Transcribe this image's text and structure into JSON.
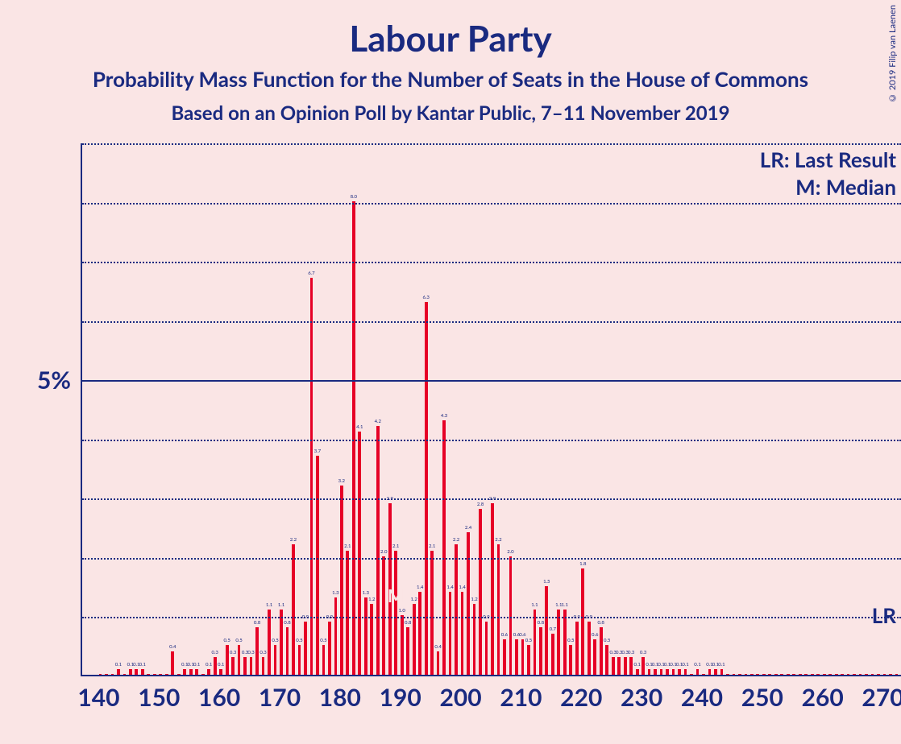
{
  "titles": {
    "main": "Labour Party",
    "sub1": "Probability Mass Function for the Number of Seats in the House of Commons",
    "sub2": "Based on an Opinion Poll by Kantar Public, 7–11 November 2019"
  },
  "copyright": "© 2019 Filip van Laenen",
  "legend": {
    "lr": "LR: Last Result",
    "m": "M: Median",
    "lr_short": "LR"
  },
  "median_marker": "M",
  "chart": {
    "type": "bar",
    "background_color": "#fae5e5",
    "bar_color": "#e60026",
    "axis_color": "#1a2a80",
    "text_color": "#1a2a80",
    "grid_color": "#1a2a80",
    "title_fontsize": 44,
    "subtitle_fontsize": 26,
    "axis_label_fontsize": 30,
    "legend_fontsize": 26,
    "bar_label_fontsize": 6,
    "xlim": [
      137,
      273
    ],
    "ylim": [
      0,
      9.0
    ],
    "ytick_major": 5,
    "ytick_step": 1,
    "xtick_step": 10,
    "xticks": [
      140,
      150,
      160,
      170,
      180,
      190,
      200,
      210,
      220,
      230,
      240,
      250,
      260,
      270
    ],
    "ylabel_at_5": "5%",
    "median_x": 189,
    "lr_short_y": 1.0,
    "bar_width_ratio": 0.5,
    "data": [
      {
        "x": 140,
        "y": 0.02
      },
      {
        "x": 141,
        "y": 0.02
      },
      {
        "x": 142,
        "y": 0.02
      },
      {
        "x": 143,
        "y": 0.1
      },
      {
        "x": 144,
        "y": 0.02
      },
      {
        "x": 145,
        "y": 0.1
      },
      {
        "x": 146,
        "y": 0.1
      },
      {
        "x": 147,
        "y": 0.1
      },
      {
        "x": 148,
        "y": 0.02
      },
      {
        "x": 149,
        "y": 0.02
      },
      {
        "x": 150,
        "y": 0.02
      },
      {
        "x": 151,
        "y": 0.02
      },
      {
        "x": 152,
        "y": 0.4
      },
      {
        "x": 153,
        "y": 0.02
      },
      {
        "x": 154,
        "y": 0.1
      },
      {
        "x": 155,
        "y": 0.1
      },
      {
        "x": 156,
        "y": 0.1
      },
      {
        "x": 157,
        "y": 0.02
      },
      {
        "x": 158,
        "y": 0.1
      },
      {
        "x": 159,
        "y": 0.3
      },
      {
        "x": 160,
        "y": 0.1
      },
      {
        "x": 161,
        "y": 0.5
      },
      {
        "x": 162,
        "y": 0.3
      },
      {
        "x": 163,
        "y": 0.5
      },
      {
        "x": 164,
        "y": 0.3
      },
      {
        "x": 165,
        "y": 0.3
      },
      {
        "x": 166,
        "y": 0.8
      },
      {
        "x": 167,
        "y": 0.3
      },
      {
        "x": 168,
        "y": 1.1
      },
      {
        "x": 169,
        "y": 0.5
      },
      {
        "x": 170,
        "y": 1.1
      },
      {
        "x": 171,
        "y": 0.8
      },
      {
        "x": 172,
        "y": 2.2
      },
      {
        "x": 173,
        "y": 0.5
      },
      {
        "x": 174,
        "y": 0.9
      },
      {
        "x": 175,
        "y": 6.7
      },
      {
        "x": 176,
        "y": 3.7
      },
      {
        "x": 177,
        "y": 0.5
      },
      {
        "x": 178,
        "y": 0.9
      },
      {
        "x": 179,
        "y": 1.3
      },
      {
        "x": 180,
        "y": 3.2
      },
      {
        "x": 181,
        "y": 2.1
      },
      {
        "x": 182,
        "y": 8.0
      },
      {
        "x": 183,
        "y": 4.1
      },
      {
        "x": 184,
        "y": 1.3
      },
      {
        "x": 185,
        "y": 1.2
      },
      {
        "x": 186,
        "y": 4.2
      },
      {
        "x": 187,
        "y": 2.0
      },
      {
        "x": 188,
        "y": 2.9
      },
      {
        "x": 189,
        "y": 2.1
      },
      {
        "x": 190,
        "y": 1.0
      },
      {
        "x": 191,
        "y": 0.8
      },
      {
        "x": 192,
        "y": 1.2
      },
      {
        "x": 193,
        "y": 1.4
      },
      {
        "x": 194,
        "y": 6.3
      },
      {
        "x": 195,
        "y": 2.1
      },
      {
        "x": 196,
        "y": 0.4
      },
      {
        "x": 197,
        "y": 4.3
      },
      {
        "x": 198,
        "y": 1.4
      },
      {
        "x": 199,
        "y": 2.2
      },
      {
        "x": 200,
        "y": 1.4
      },
      {
        "x": 201,
        "y": 2.4
      },
      {
        "x": 202,
        "y": 1.2
      },
      {
        "x": 203,
        "y": 2.8
      },
      {
        "x": 204,
        "y": 0.9
      },
      {
        "x": 205,
        "y": 2.9
      },
      {
        "x": 206,
        "y": 2.2
      },
      {
        "x": 207,
        "y": 0.6
      },
      {
        "x": 208,
        "y": 2.0
      },
      {
        "x": 209,
        "y": 0.6
      },
      {
        "x": 210,
        "y": 0.6
      },
      {
        "x": 211,
        "y": 0.5
      },
      {
        "x": 212,
        "y": 1.1
      },
      {
        "x": 213,
        "y": 0.8
      },
      {
        "x": 214,
        "y": 1.5
      },
      {
        "x": 215,
        "y": 0.7
      },
      {
        "x": 216,
        "y": 1.1
      },
      {
        "x": 217,
        "y": 1.1
      },
      {
        "x": 218,
        "y": 0.5
      },
      {
        "x": 219,
        "y": 0.9
      },
      {
        "x": 220,
        "y": 1.8
      },
      {
        "x": 221,
        "y": 0.9
      },
      {
        "x": 222,
        "y": 0.6
      },
      {
        "x": 223,
        "y": 0.8
      },
      {
        "x": 224,
        "y": 0.5
      },
      {
        "x": 225,
        "y": 0.3
      },
      {
        "x": 226,
        "y": 0.3
      },
      {
        "x": 227,
        "y": 0.3
      },
      {
        "x": 228,
        "y": 0.3
      },
      {
        "x": 229,
        "y": 0.1
      },
      {
        "x": 230,
        "y": 0.3
      },
      {
        "x": 231,
        "y": 0.1
      },
      {
        "x": 232,
        "y": 0.1
      },
      {
        "x": 233,
        "y": 0.1
      },
      {
        "x": 234,
        "y": 0.1
      },
      {
        "x": 235,
        "y": 0.1
      },
      {
        "x": 236,
        "y": 0.1
      },
      {
        "x": 237,
        "y": 0.1
      },
      {
        "x": 238,
        "y": 0.02
      },
      {
        "x": 239,
        "y": 0.1
      },
      {
        "x": 240,
        "y": 0.02
      },
      {
        "x": 241,
        "y": 0.1
      },
      {
        "x": 242,
        "y": 0.1
      },
      {
        "x": 243,
        "y": 0.1
      },
      {
        "x": 244,
        "y": 0.02
      },
      {
        "x": 245,
        "y": 0.02
      },
      {
        "x": 246,
        "y": 0.02
      },
      {
        "x": 247,
        "y": 0.02
      },
      {
        "x": 248,
        "y": 0.02
      },
      {
        "x": 249,
        "y": 0.02
      },
      {
        "x": 250,
        "y": 0.02
      },
      {
        "x": 251,
        "y": 0.02
      },
      {
        "x": 252,
        "y": 0.02
      },
      {
        "x": 253,
        "y": 0.02
      },
      {
        "x": 254,
        "y": 0.02
      },
      {
        "x": 255,
        "y": 0.02
      },
      {
        "x": 256,
        "y": 0.02
      },
      {
        "x": 257,
        "y": 0.02
      },
      {
        "x": 258,
        "y": 0.02
      },
      {
        "x": 259,
        "y": 0.02
      },
      {
        "x": 260,
        "y": 0.02
      },
      {
        "x": 261,
        "y": 0.02
      },
      {
        "x": 262,
        "y": 0.02
      },
      {
        "x": 263,
        "y": 0.02
      },
      {
        "x": 264,
        "y": 0.02
      },
      {
        "x": 265,
        "y": 0.02
      },
      {
        "x": 266,
        "y": 0.02
      },
      {
        "x": 267,
        "y": 0.02
      },
      {
        "x": 268,
        "y": 0.02
      },
      {
        "x": 269,
        "y": 0.02
      },
      {
        "x": 270,
        "y": 0.02
      },
      {
        "x": 271,
        "y": 0.02
      },
      {
        "x": 272,
        "y": 0.02
      }
    ]
  }
}
